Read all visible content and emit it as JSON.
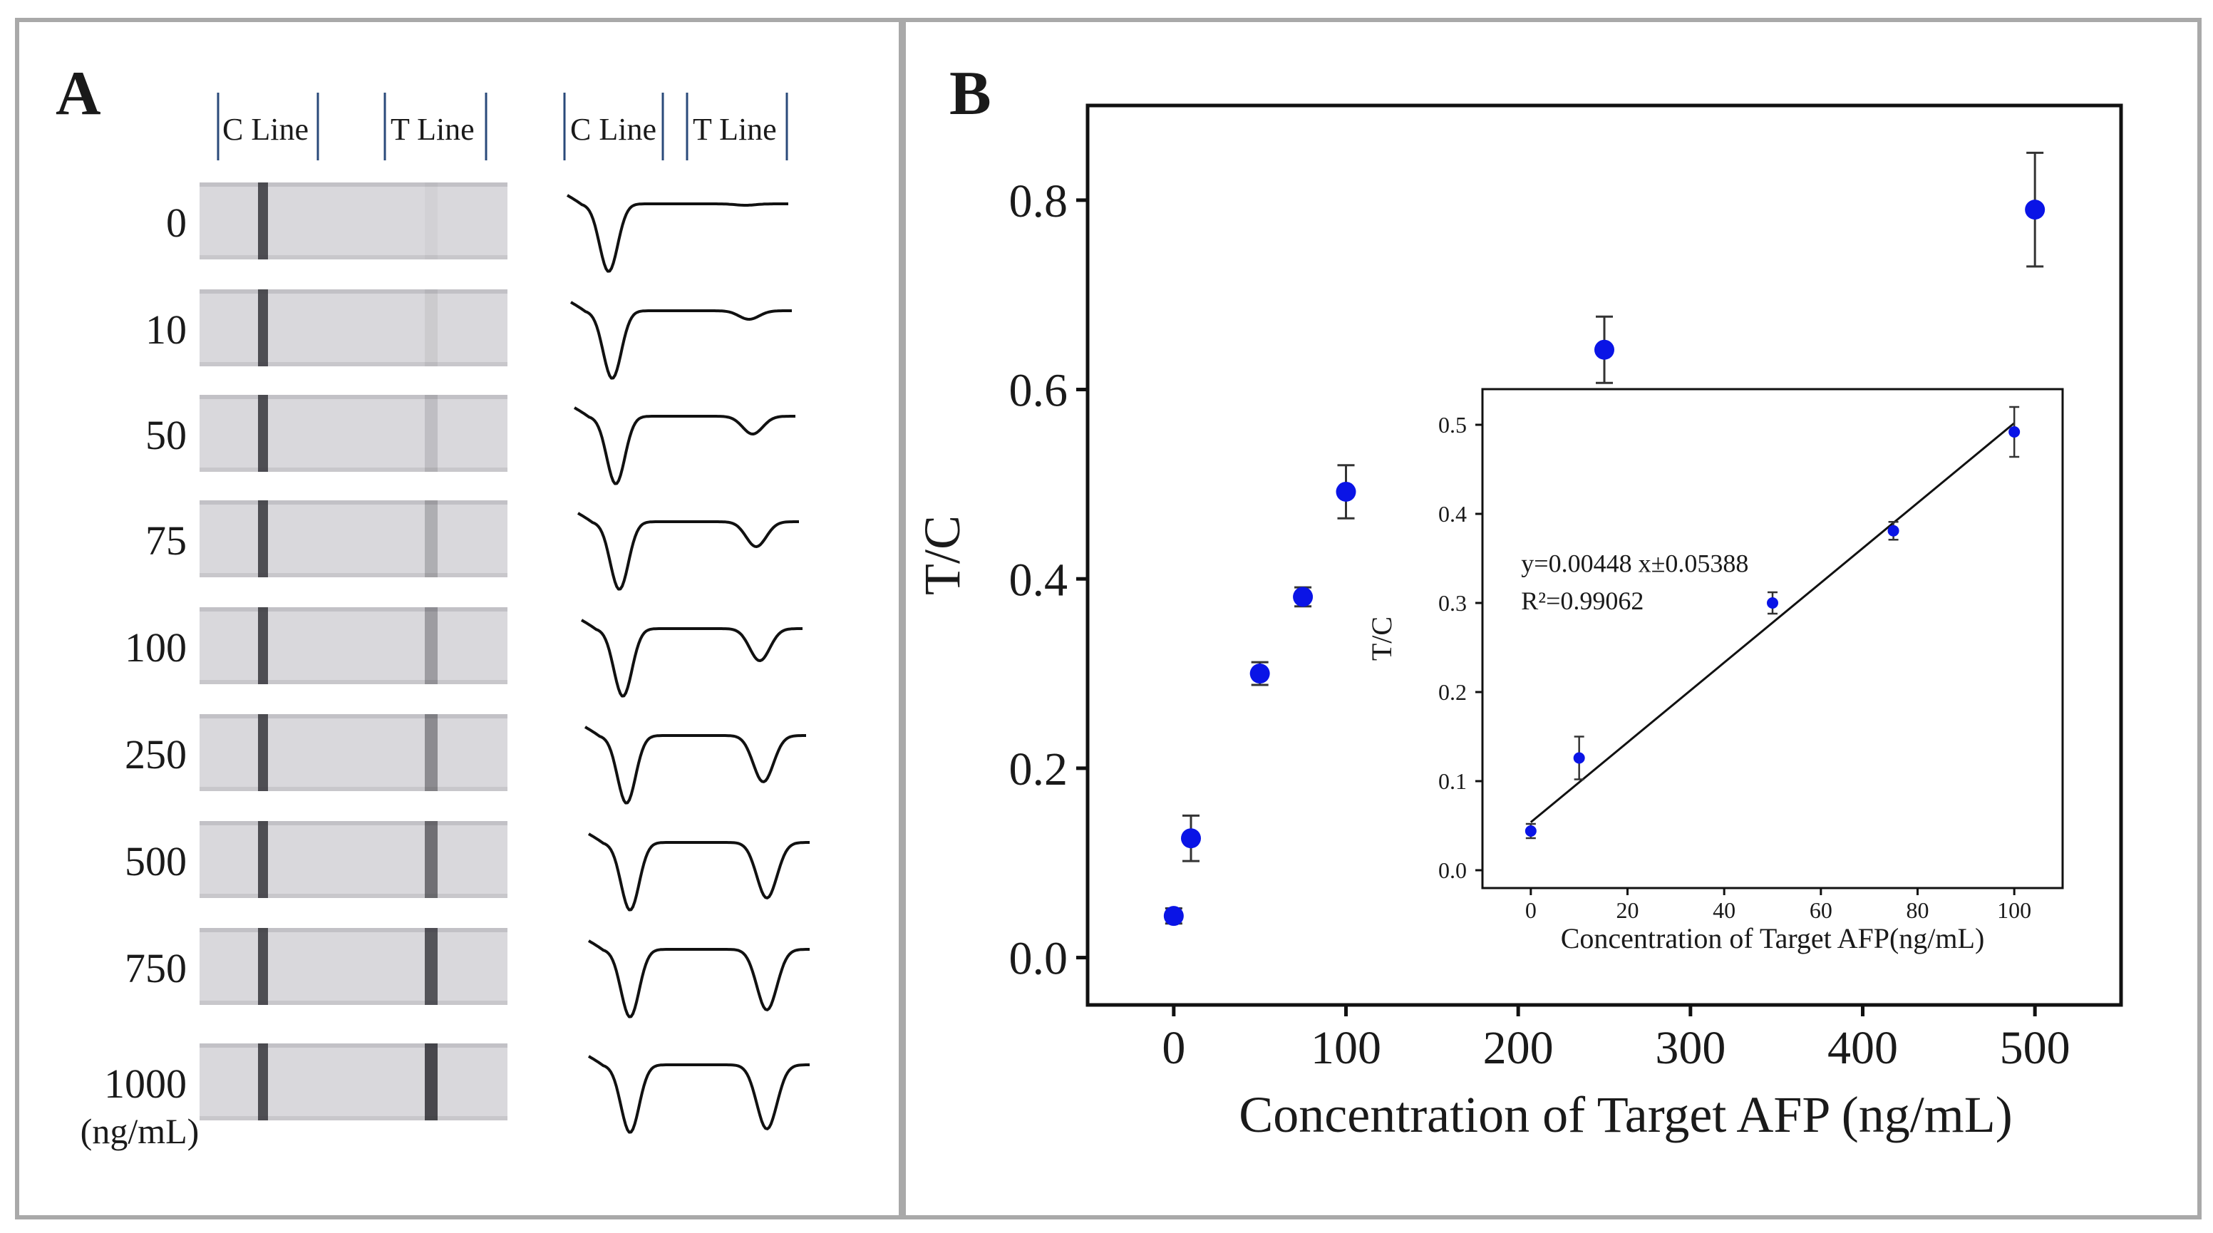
{
  "panel_a": {
    "label": "A",
    "header_strip": [
      "C Line",
      "T Line"
    ],
    "header_trace": [
      "C Line",
      "T Line"
    ],
    "concentrations": [
      "0",
      "10",
      "50",
      "75",
      "100",
      "250",
      "500",
      "750",
      "1000"
    ],
    "unit_label": "(ng/mL)",
    "t_line_intensity": [
      0.0,
      0.08,
      0.15,
      0.25,
      0.35,
      0.45,
      0.62,
      0.78,
      0.85
    ],
    "t_peak_depth": [
      0.02,
      0.12,
      0.25,
      0.35,
      0.45,
      0.65,
      0.78,
      0.85,
      0.9
    ]
  },
  "panel_b": {
    "label": "B"
  },
  "chart_data": [
    {
      "type": "scatter",
      "xlabel": "Concentration of Target AFP (ng/mL)",
      "ylabel": "T/C",
      "xlim": [
        -50,
        550
      ],
      "ylim": [
        -0.05,
        0.9
      ],
      "xticks": [
        "0",
        "100",
        "200",
        "300",
        "400",
        "500"
      ],
      "yticks": [
        "0.0",
        "0.2",
        "0.4",
        "0.6",
        "0.8"
      ],
      "x": [
        0,
        10,
        50,
        75,
        100,
        250,
        500
      ],
      "y": [
        0.044,
        0.126,
        0.3,
        0.381,
        0.492,
        0.642,
        0.79
      ],
      "error": [
        0.008,
        0.024,
        0.012,
        0.01,
        0.028,
        0.035,
        0.06
      ],
      "color": "#0a14e6"
    },
    {
      "type": "scatter",
      "inset": true,
      "xlabel": "Concentration of  Target AFP(ng/mL)",
      "ylabel": "T/C",
      "xlim": [
        -10,
        110
      ],
      "ylim": [
        -0.02,
        0.54
      ],
      "xticks": [
        "0",
        "20",
        "40",
        "60",
        "80",
        "100"
      ],
      "yticks": [
        "0.0",
        "0.1",
        "0.2",
        "0.3",
        "0.4",
        "0.5"
      ],
      "x": [
        0,
        10,
        50,
        75,
        100
      ],
      "y": [
        0.044,
        0.126,
        0.3,
        0.381,
        0.492
      ],
      "error": [
        0.008,
        0.024,
        0.012,
        0.01,
        0.028
      ],
      "fit": {
        "slope": 0.00448,
        "intercept": 0.05388
      },
      "equation": "y=0.00448  x±0.05388",
      "r2": "R²=0.99062",
      "color": "#0a14e6"
    }
  ]
}
